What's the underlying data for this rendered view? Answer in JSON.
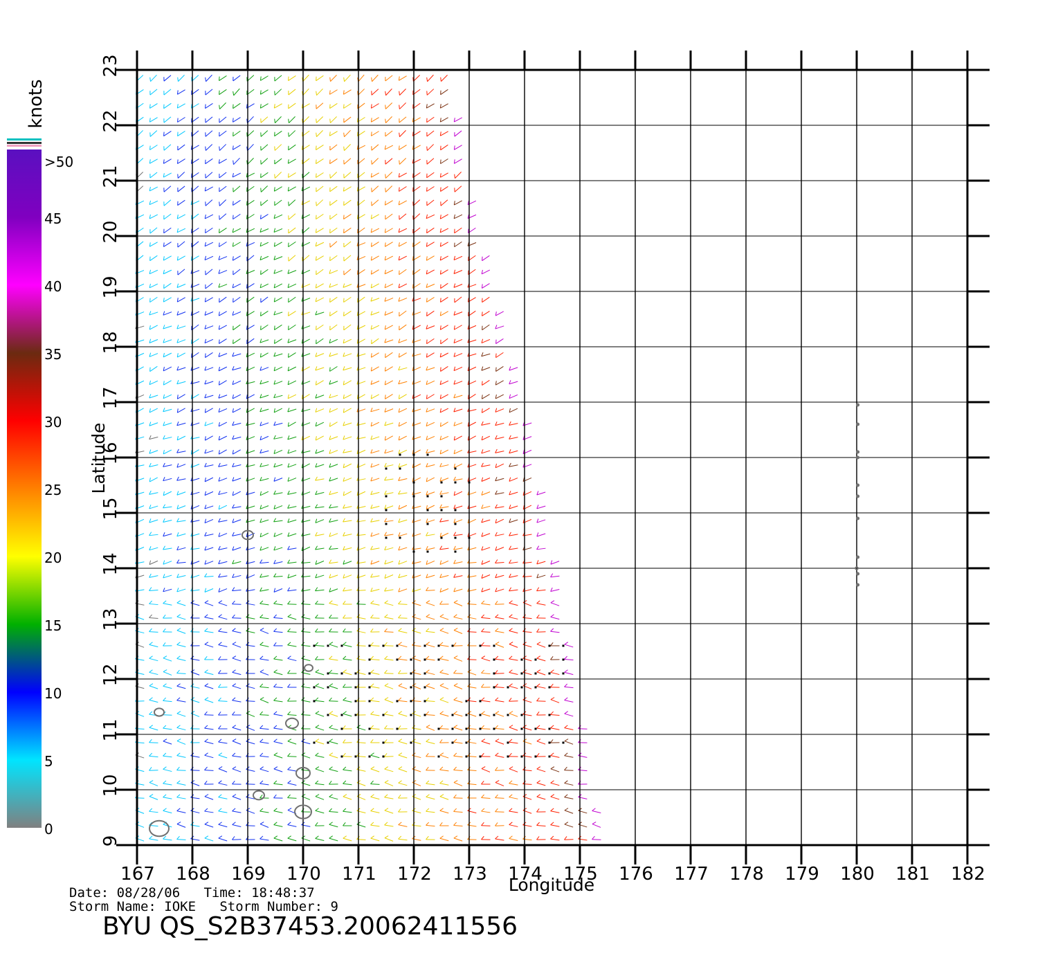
{
  "chart_data": {
    "type": "quiver",
    "xlabel": "Longitude",
    "ylabel": "Latitude",
    "xlim": [
      167,
      182
    ],
    "ylim": [
      9,
      23
    ],
    "xticks": [
      167,
      168,
      169,
      170,
      171,
      172,
      173,
      174,
      175,
      176,
      177,
      178,
      179,
      180,
      181,
      182
    ],
    "yticks": [
      9,
      10,
      11,
      12,
      13,
      14,
      15,
      16,
      17,
      18,
      19,
      20,
      21,
      22,
      23
    ],
    "grid": true,
    "colorbar": {
      "title": "knots",
      "position": "left",
      "ticks": [
        "0",
        "5",
        "10",
        "15",
        "20",
        "25",
        "30",
        "35",
        "40",
        "45",
        ">50"
      ],
      "colors": [
        "#808080",
        "#00e5ff",
        "#0000ff",
        "#00b000",
        "#ffff00",
        "#ff8000",
        "#ff0000",
        "#6b2a10",
        "#ff00ff",
        "#8000c0",
        "#5a10c0"
      ]
    },
    "swath": {
      "east_edge": [
        [
          172.7,
          23
        ],
        [
          173.0,
          21
        ],
        [
          173.5,
          19
        ],
        [
          174.0,
          17
        ],
        [
          174.4,
          15
        ],
        [
          174.9,
          12
        ],
        [
          175.4,
          9
        ]
      ],
      "west_edge": 167
    },
    "rain_flag_regions": [
      {
        "lon": [
          171.5,
          173.0
        ],
        "lat": [
          14.3,
          16.1
        ]
      },
      {
        "lon": [
          170.2,
          174.8
        ],
        "lat": [
          10.6,
          12.8
        ]
      }
    ],
    "land_contours_lon_lat": [
      [
        169.0,
        14.6
      ],
      [
        170.1,
        12.2
      ],
      [
        167.4,
        11.4
      ],
      [
        169.8,
        11.2
      ],
      [
        170.0,
        10.3
      ],
      [
        169.2,
        9.9
      ],
      [
        170.0,
        9.6
      ],
      [
        167.4,
        9.3
      ],
      [
        180.0,
        14.0
      ]
    ]
  },
  "footer": {
    "date_label": "Date: 08/28/06",
    "time_label": "Time: 18:48:37",
    "storm_name_label": "Storm Name: IOKE",
    "storm_number_label": "Storm Number: 9",
    "title": "BYU QS_S2B37453.20062411556"
  }
}
